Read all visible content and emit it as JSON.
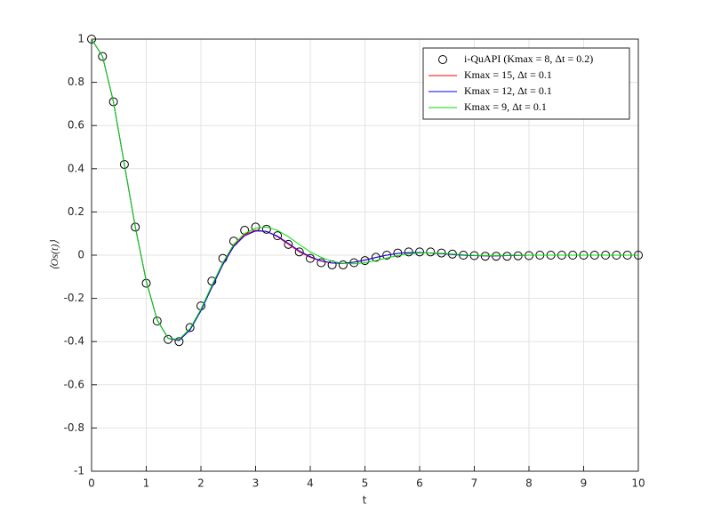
{
  "chart_data": {
    "type": "line",
    "xlabel": "t",
    "ylabel": "⟨Os(t)⟩",
    "xlim": [
      0,
      10
    ],
    "ylim": [
      -1,
      1
    ],
    "xticks": [
      0,
      1,
      2,
      3,
      4,
      5,
      6,
      7,
      8,
      9,
      10
    ],
    "yticks": [
      -1,
      -0.8,
      -0.6,
      -0.4,
      -0.2,
      0,
      0.2,
      0.4,
      0.6,
      0.8,
      1
    ],
    "grid": true,
    "legend_position": "upper-right",
    "x": [
      0,
      0.2,
      0.4,
      0.6,
      0.8,
      1,
      1.2,
      1.4,
      1.6,
      1.8,
      2,
      2.2,
      2.4,
      2.6,
      2.8,
      3,
      3.2,
      3.4,
      3.6,
      3.8,
      4,
      4.2,
      4.4,
      4.6,
      4.8,
      5,
      5.2,
      5.4,
      5.6,
      5.8,
      6,
      6.2,
      6.4,
      6.6,
      6.8,
      7,
      7.2,
      7.4,
      7.6,
      7.8,
      8,
      8.2,
      8.4,
      8.6,
      8.8,
      9,
      9.2,
      9.4,
      9.6,
      9.8,
      10
    ],
    "series": [
      {
        "name": "i-QuAPI (Kmax = 8, Δt = 0.2)",
        "color": "#000000",
        "style": "markers",
        "values": [
          1,
          0.92,
          0.71,
          0.42,
          0.13,
          -0.13,
          -0.305,
          -0.39,
          -0.4,
          -0.335,
          -0.235,
          -0.12,
          -0.015,
          0.065,
          0.115,
          0.13,
          0.12,
          0.09,
          0.05,
          0.015,
          -0.015,
          -0.035,
          -0.045,
          -0.045,
          -0.035,
          -0.025,
          -0.01,
          0,
          0.01,
          0.015,
          0.015,
          0.015,
          0.01,
          0.005,
          0,
          -0.002,
          -0.005,
          -0.005,
          -0.005,
          -0.003,
          -0.002,
          0,
          0,
          0,
          0,
          0,
          0,
          0,
          0,
          0,
          0
        ]
      },
      {
        "name": "Kmax = 15, Δt = 0.1",
        "color": "#ff0000",
        "style": "line",
        "values": [
          1,
          0.92,
          0.71,
          0.42,
          0.13,
          -0.12,
          -0.3,
          -0.385,
          -0.395,
          -0.345,
          -0.255,
          -0.145,
          -0.04,
          0.045,
          0.095,
          0.115,
          0.11,
          0.085,
          0.05,
          0.015,
          -0.01,
          -0.028,
          -0.037,
          -0.038,
          -0.032,
          -0.022,
          -0.01,
          0,
          0.008,
          0.012,
          0.012,
          0.01,
          0.007,
          0.003,
          0,
          -0.002,
          -0.003,
          -0.003,
          -0.002,
          -0.001,
          0,
          0,
          0,
          0,
          0,
          0,
          0,
          0,
          0,
          0,
          0
        ]
      },
      {
        "name": "Kmax = 12, Δt = 0.1",
        "color": "#0000ff",
        "style": "line",
        "values": [
          1,
          0.92,
          0.71,
          0.42,
          0.13,
          -0.12,
          -0.3,
          -0.385,
          -0.395,
          -0.347,
          -0.258,
          -0.15,
          -0.045,
          0.04,
          0.09,
          0.112,
          0.11,
          0.088,
          0.055,
          0.02,
          -0.007,
          -0.026,
          -0.036,
          -0.038,
          -0.033,
          -0.023,
          -0.011,
          0,
          0.008,
          0.012,
          0.012,
          0.01,
          0.007,
          0.003,
          0,
          -0.002,
          -0.003,
          -0.003,
          -0.002,
          -0.001,
          0,
          0,
          0,
          0,
          0,
          0,
          0,
          0,
          0,
          0,
          0
        ]
      },
      {
        "name": "Kmax = 9, Δt = 0.1",
        "color": "#00dd00",
        "style": "line",
        "values": [
          1,
          0.92,
          0.71,
          0.42,
          0.13,
          -0.12,
          -0.3,
          -0.385,
          -0.39,
          -0.34,
          -0.25,
          -0.14,
          -0.035,
          0.05,
          0.1,
          0.125,
          0.13,
          0.115,
          0.085,
          0.05,
          0.015,
          -0.01,
          -0.028,
          -0.038,
          -0.04,
          -0.035,
          -0.025,
          -0.013,
          -0.002,
          0.006,
          0.01,
          0.011,
          0.009,
          0.005,
          0.002,
          -0.001,
          -0.002,
          -0.002,
          -0.001,
          0,
          0,
          0,
          0,
          0,
          0,
          0,
          0,
          0,
          0,
          0,
          0
        ]
      }
    ]
  }
}
